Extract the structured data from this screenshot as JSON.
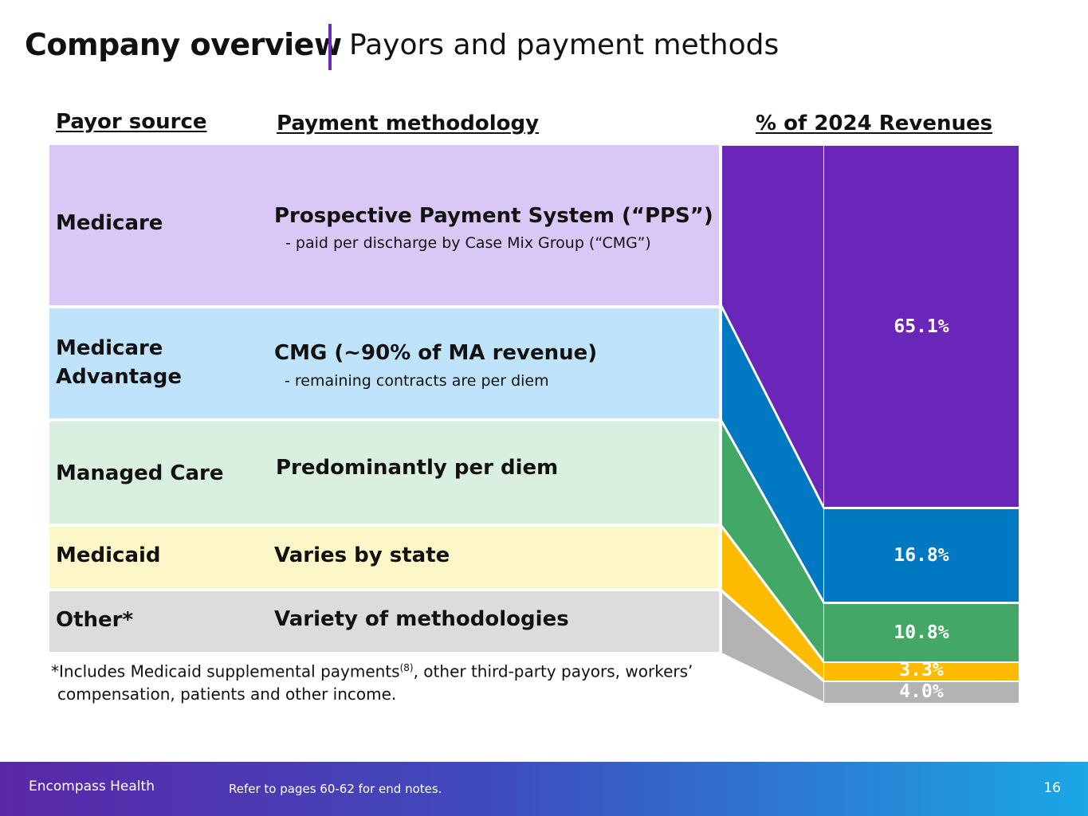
{
  "header": {
    "title": "Company overview",
    "subtitle": "Payors and payment methods"
  },
  "columns": {
    "payor_source": "Payor source",
    "payment_methodology": "Payment methodology",
    "revenue_share": "% of 2024 Revenues"
  },
  "rows": [
    {
      "payor": "Medicare",
      "method": "Prospective Payment System (“PPS”)",
      "method_note": "- paid per discharge by Case Mix Group (“CMG”)",
      "share": "65.1%",
      "share_value": 65.1,
      "band_color": "#d9c8f6",
      "bar_color": "#6a26b8"
    },
    {
      "payor": "Medicare Advantage",
      "method": "CMG (~90% of MA revenue)",
      "method_note": "- remaining contracts are per diem",
      "share": "16.8%",
      "share_value": 16.8,
      "band_color": "#bfe3fb",
      "bar_color": "#0078c2"
    },
    {
      "payor": "Managed Care",
      "method": "Predominantly per diem",
      "method_note": "",
      "share": "10.8%",
      "share_value": 10.8,
      "band_color": "#d9f0e1",
      "bar_color": "#43a867"
    },
    {
      "payor": "Medicaid",
      "method": "Varies by state",
      "method_note": "",
      "share": "3.3%",
      "share_value": 3.3,
      "band_color": "#fdf6c6",
      "bar_color": "#fdbb00"
    },
    {
      "payor": "Other*",
      "method": "Variety of methodologies",
      "method_note": "",
      "share": "4.0%",
      "share_value": 4.0,
      "band_color": "#dcdcdc",
      "bar_color": "#b3b3b3"
    }
  ],
  "footnote": {
    "line1_pre": "*Includes Medicaid supplemental payments",
    "line1_sup": "(8)",
    "line1_post": ", other third-party payors, workers’",
    "line2": "compensation, patients and other income."
  },
  "footer": {
    "company": "Encompass Health",
    "notes": "Refer to pages 60-62 for end notes.",
    "page": "16"
  }
}
